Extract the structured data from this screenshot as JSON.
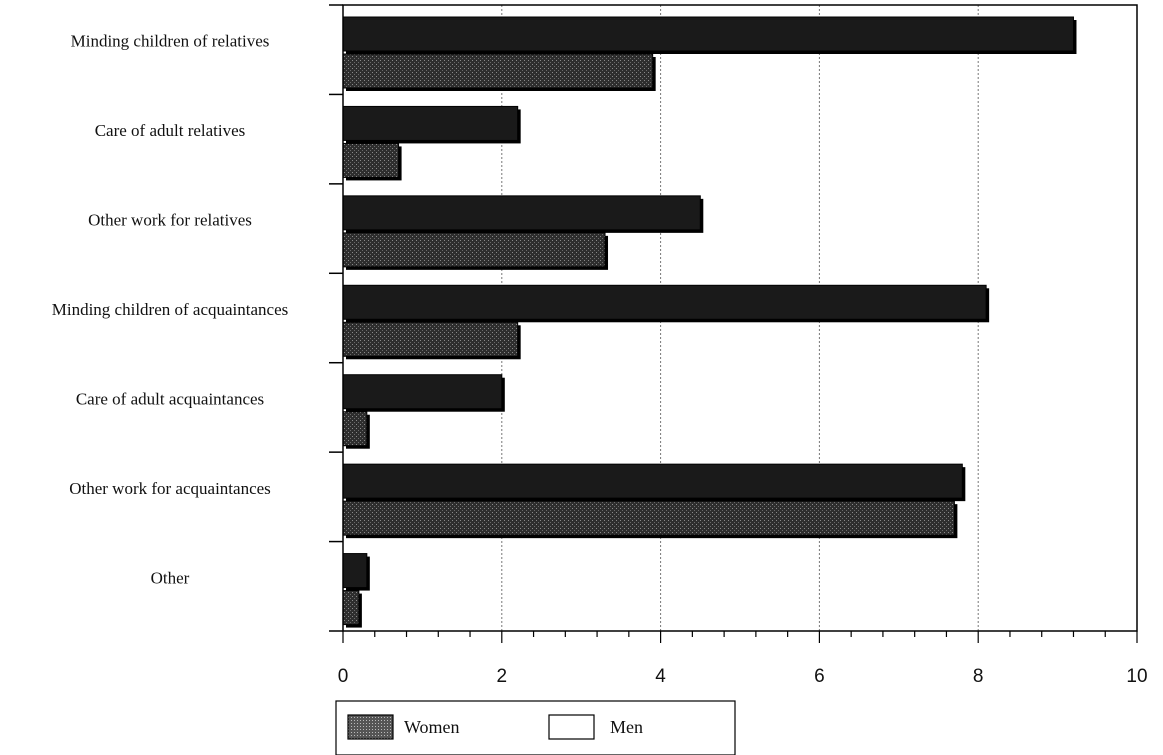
{
  "chart_data": {
    "type": "bar",
    "orientation": "horizontal",
    "categories": [
      "Minding children of relatives",
      "Care of adult relatives",
      "Other work for relatives",
      "Minding children of acquaintances",
      "Care of adult acquaintances",
      "Other work for acquaintances",
      "Other"
    ],
    "series": [
      {
        "name": "Women",
        "values": [
          9.2,
          2.2,
          4.5,
          8.1,
          2.0,
          7.8,
          0.3
        ],
        "color": "#1a1a1a"
      },
      {
        "name": "Men",
        "values": [
          3.9,
          0.7,
          3.3,
          2.2,
          0.3,
          7.7,
          0.2
        ],
        "color": "#3c3c3c"
      }
    ],
    "xlim": [
      0,
      10
    ],
    "x_ticks": [
      "0",
      "2",
      "4",
      "6",
      "8",
      "10"
    ],
    "grid": "vertical",
    "legend_position": "bottom-left",
    "legend": [
      {
        "label": "Women",
        "swatch": "#444444"
      },
      {
        "label": "Men",
        "swatch": "#ffffff"
      }
    ]
  }
}
